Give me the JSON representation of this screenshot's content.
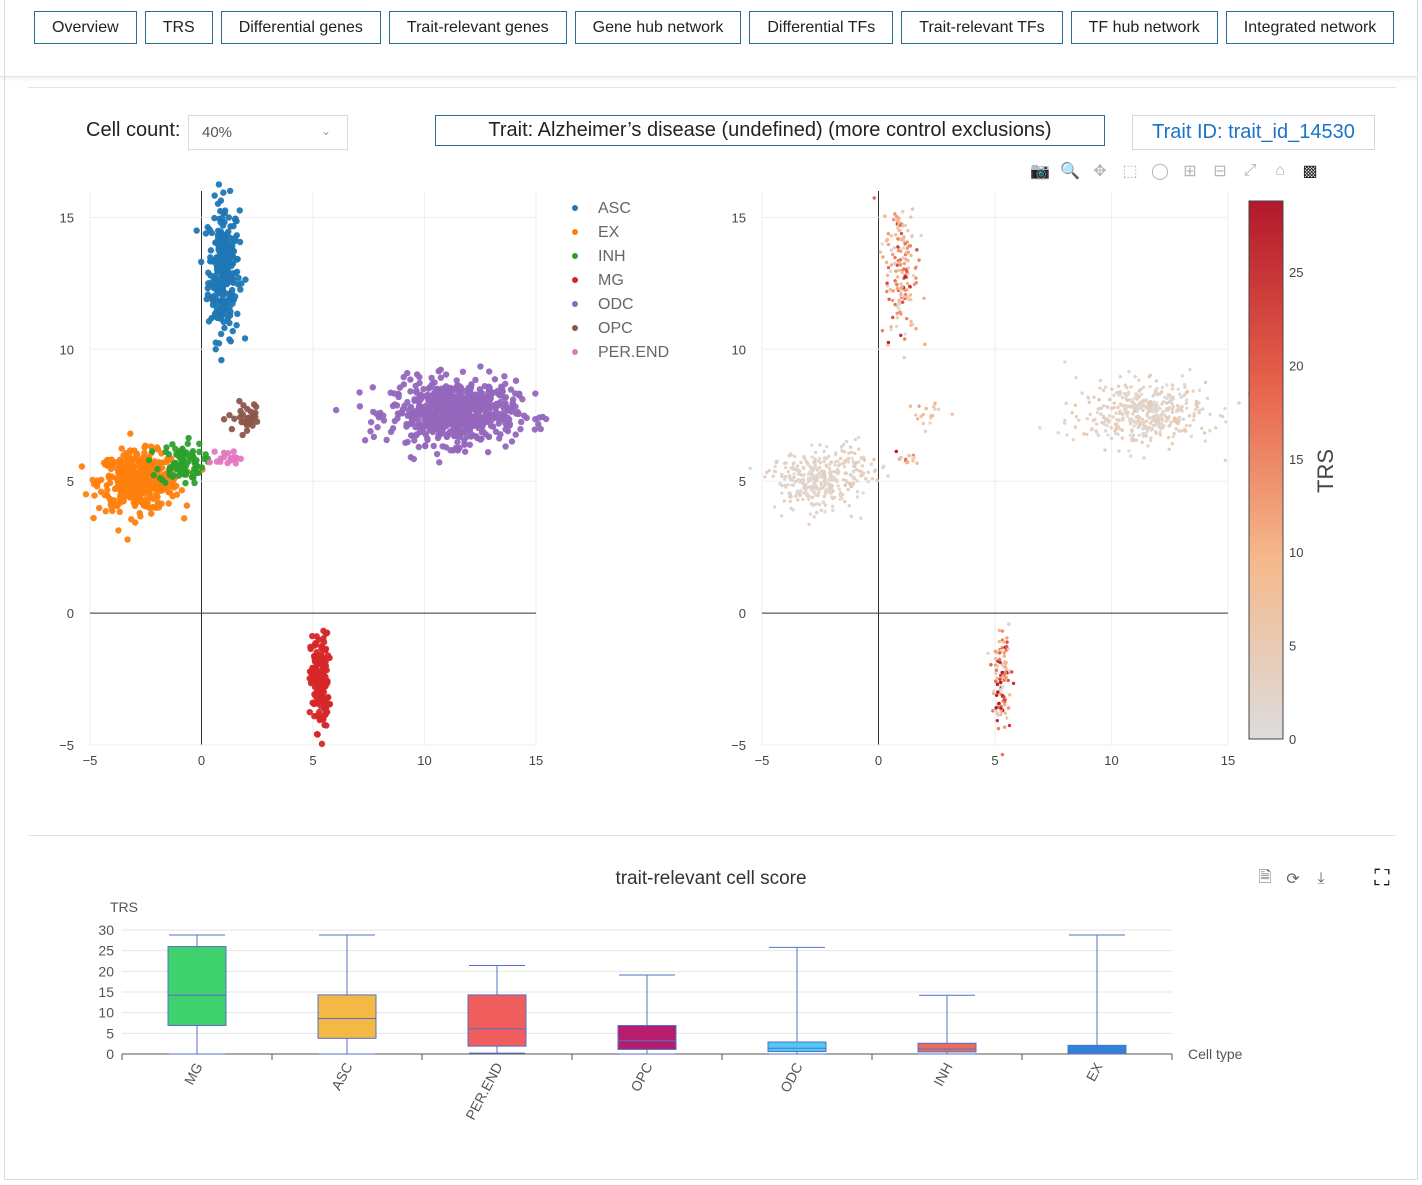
{
  "nav": {
    "tabs": [
      "Overview",
      "TRS",
      "Differential genes",
      "Trait-relevant genes",
      "Gene hub network",
      "Differential TFs",
      "Trait-relevant TFs",
      "TF hub network",
      "Integrated network"
    ]
  },
  "controls": {
    "cell_count_label": "Cell count:",
    "cell_count_value": "40%",
    "trait_text": "Trait: Alzheimer’s disease (undefined) (more control exclusions)",
    "trait_id_text": "Trait ID: trait_id_14530"
  },
  "modebar_icons": [
    "camera-icon",
    "zoom-icon",
    "pan-icon",
    "box-select-icon",
    "lasso-icon",
    "zoom-in-icon",
    "zoom-out-icon",
    "autoscale-icon",
    "reset-axes-icon",
    "plotly-logo-icon"
  ],
  "box_toolbar_icons": [
    "data-view-icon",
    "restore-icon",
    "download-icon"
  ],
  "fullscreen_icon": "fullscreen-icon",
  "chart_data": [
    {
      "type": "scatter",
      "xlim": [
        -5,
        15
      ],
      "ylim": [
        -5,
        16
      ],
      "xticks": [
        -5,
        0,
        5,
        10,
        15
      ],
      "yticks": [
        -5,
        0,
        5,
        10,
        15
      ],
      "xtick_labels": [
        "−5",
        "0",
        "5",
        "10",
        "15"
      ],
      "ytick_labels": [
        "−5",
        "0",
        "5",
        "10",
        "15"
      ],
      "legend_position": "top-right",
      "series": [
        {
          "name": "ASC",
          "color": "#1f77b4",
          "clusters": [
            {
              "cx": 1.0,
              "cy": 13.0,
              "sx": 0.35,
              "sy": 1.3,
              "n": 260
            }
          ]
        },
        {
          "name": "EX",
          "color": "#ff7f0e",
          "clusters": [
            {
              "cx": -2.8,
              "cy": 5.0,
              "sx": 0.9,
              "sy": 0.55,
              "n": 420
            }
          ]
        },
        {
          "name": "INH",
          "color": "#2ca02c",
          "clusters": [
            {
              "cx": -0.9,
              "cy": 5.7,
              "sx": 0.5,
              "sy": 0.4,
              "n": 90
            }
          ]
        },
        {
          "name": "MG",
          "color": "#d62728",
          "clusters": [
            {
              "cx": 5.3,
              "cy": -2.6,
              "sx": 0.2,
              "sy": 0.9,
              "n": 170
            }
          ]
        },
        {
          "name": "ODC",
          "color": "#9467bd",
          "clusters": [
            {
              "cx": 11.3,
              "cy": 7.6,
              "sx": 1.4,
              "sy": 0.6,
              "n": 650
            }
          ]
        },
        {
          "name": "OPC",
          "color": "#8c564b",
          "clusters": [
            {
              "cx": 2.1,
              "cy": 7.4,
              "sx": 0.45,
              "sy": 0.3,
              "n": 30
            }
          ]
        },
        {
          "name": "PER.END",
          "color": "#e377c2",
          "clusters": [
            {
              "cx": 1.2,
              "cy": 5.9,
              "sx": 0.25,
              "sy": 0.12,
              "n": 22
            }
          ]
        }
      ]
    },
    {
      "type": "scatter",
      "xlim": [
        -5,
        15
      ],
      "ylim": [
        -5,
        16
      ],
      "xticks": [
        -5,
        0,
        5,
        10,
        15
      ],
      "yticks": [
        -5,
        0,
        5,
        10,
        15
      ],
      "xtick_labels": [
        "−5",
        "0",
        "5",
        "10",
        "15"
      ],
      "ytick_labels": [
        "−5",
        "0",
        "5",
        "10",
        "15"
      ],
      "color_variable": "TRS",
      "colorbar": {
        "title": "TRS",
        "min": 0,
        "max": 28.8,
        "ticks": [
          0,
          5,
          10,
          15,
          20,
          25
        ]
      },
      "colorscale": [
        "#dcdcdc",
        "#f5b98c",
        "#e6604a",
        "#b2182b"
      ],
      "clusters": [
        {
          "cx": 1.0,
          "cy": 13.0,
          "sx": 0.35,
          "sy": 1.3,
          "n": 170,
          "trs_mean": 12
        },
        {
          "cx": -2.8,
          "cy": 5.0,
          "sx": 0.9,
          "sy": 0.55,
          "n": 300,
          "trs_mean": 2
        },
        {
          "cx": -0.9,
          "cy": 5.7,
          "sx": 0.5,
          "sy": 0.4,
          "n": 60,
          "trs_mean": 3
        },
        {
          "cx": 5.3,
          "cy": -2.6,
          "sx": 0.2,
          "sy": 0.9,
          "n": 110,
          "trs_mean": 15
        },
        {
          "cx": 11.3,
          "cy": 7.6,
          "sx": 1.4,
          "sy": 0.6,
          "n": 430,
          "trs_mean": 2.5
        },
        {
          "cx": 2.1,
          "cy": 7.4,
          "sx": 0.45,
          "sy": 0.3,
          "n": 18,
          "trs_mean": 6
        },
        {
          "cx": 1.2,
          "cy": 5.9,
          "sx": 0.25,
          "sy": 0.12,
          "n": 14,
          "trs_mean": 10
        }
      ]
    },
    {
      "type": "box",
      "title": "trait-relevant cell score",
      "ylabel": "TRS",
      "xlabel": "Cell type",
      "ylim": [
        0,
        30
      ],
      "yticks": [
        0,
        5,
        10,
        15,
        20,
        25,
        30
      ],
      "categories": [
        "MG",
        "ASC",
        "PER.END",
        "OPC",
        "ODC",
        "INH",
        "EX"
      ],
      "boxes": [
        {
          "name": "MG",
          "min": 0,
          "q1": 6.9,
          "median": 14.2,
          "q3": 26.0,
          "max": 28.8,
          "color": "#3fd16e"
        },
        {
          "name": "ASC",
          "min": 0,
          "q1": 3.8,
          "median": 8.6,
          "q3": 14.3,
          "max": 28.8,
          "color": "#f4b844"
        },
        {
          "name": "PER.END",
          "min": 0.2,
          "q1": 1.9,
          "median": 6.1,
          "q3": 14.3,
          "max": 21.4,
          "color": "#ef5d5d"
        },
        {
          "name": "OPC",
          "min": 0,
          "q1": 1.1,
          "median": 3.2,
          "q3": 6.9,
          "max": 19.1,
          "color": "#b51e6c"
        },
        {
          "name": "ODC",
          "min": 0,
          "q1": 0.6,
          "median": 1.4,
          "q3": 2.9,
          "max": 25.8,
          "color": "#4fc9f2"
        },
        {
          "name": "INH",
          "min": 0,
          "q1": 0.5,
          "median": 1.2,
          "q3": 2.6,
          "max": 14.2,
          "color": "#ec6c5b"
        },
        {
          "name": "EX",
          "min": 0,
          "q1": 0.2,
          "median": 0.7,
          "q3": 2.1,
          "max": 28.8,
          "color": "#2a86dd"
        }
      ]
    }
  ]
}
